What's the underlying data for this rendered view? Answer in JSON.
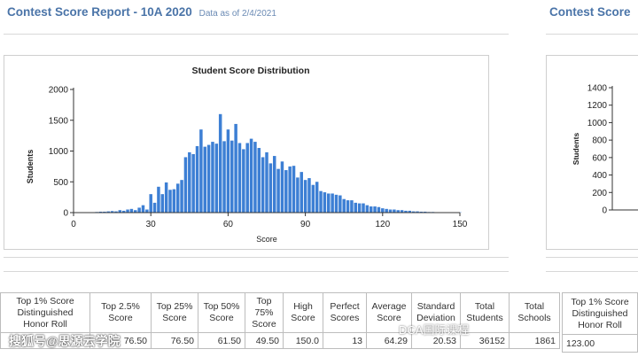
{
  "header": {
    "title": "Contest Score Report -  10A 2020",
    "as_of": "Data as of 2/4/2021",
    "title_right": "Contest Score"
  },
  "chart_data": [
    {
      "type": "bar",
      "title": "Student Score Distribution",
      "xlabel": "Score",
      "ylabel": "Students",
      "xlim": [
        0,
        150
      ],
      "ylim": [
        0,
        2000
      ],
      "xticks": [
        0,
        30,
        60,
        90,
        120,
        150
      ],
      "yticks": [
        0,
        500,
        1000,
        1500,
        2000
      ],
      "bar_width": 1.5,
      "color": "#3d7fd4",
      "grid": false,
      "x": [
        6,
        7.5,
        9,
        10.5,
        12,
        13.5,
        15,
        16.5,
        18,
        19.5,
        21,
        22.5,
        24,
        25.5,
        27,
        28.5,
        30,
        31.5,
        33,
        34.5,
        36,
        37.5,
        39,
        40.5,
        42,
        43.5,
        45,
        46.5,
        48,
        49.5,
        51,
        52.5,
        54,
        55.5,
        57,
        58.5,
        60,
        61.5,
        63,
        64.5,
        66,
        67.5,
        69,
        70.5,
        72,
        73.5,
        75,
        76.5,
        78,
        79.5,
        81,
        82.5,
        84,
        85.5,
        87,
        88.5,
        90,
        91.5,
        93,
        94.5,
        96,
        97.5,
        99,
        100.5,
        102,
        103.5,
        105,
        106.5,
        108,
        109.5,
        111,
        112.5,
        114,
        115.5,
        117,
        118.5,
        120,
        121.5,
        123,
        124.5,
        126,
        127.5,
        129,
        130.5,
        132,
        133.5,
        135,
        136.5,
        138,
        139.5,
        141,
        142.5,
        144,
        145.5,
        147,
        148.5,
        150
      ],
      "values": [
        5,
        5,
        10,
        15,
        15,
        20,
        25,
        20,
        40,
        30,
        50,
        60,
        40,
        80,
        120,
        50,
        300,
        160,
        420,
        300,
        490,
        370,
        380,
        470,
        530,
        900,
        980,
        950,
        1080,
        1350,
        1070,
        1100,
        1150,
        1120,
        1600,
        1160,
        1350,
        1170,
        1440,
        1130,
        1030,
        1130,
        1200,
        1150,
        1050,
        900,
        980,
        800,
        920,
        710,
        830,
        690,
        750,
        760,
        570,
        660,
        530,
        560,
        450,
        500,
        350,
        330,
        310,
        310,
        290,
        280,
        220,
        200,
        200,
        160,
        150,
        150,
        120,
        100,
        100,
        90,
        70,
        60,
        50,
        50,
        40,
        40,
        30,
        30,
        20,
        20,
        15,
        15,
        10,
        10,
        5,
        5,
        5,
        5,
        5,
        5,
        5
      ]
    },
    {
      "type": "bar",
      "title": "",
      "ylim": [
        0,
        1400
      ],
      "yticks": [
        0,
        200,
        400,
        600,
        800,
        1000,
        1200,
        1400
      ],
      "ylabel": "Students"
    }
  ],
  "table": {
    "headers": [
      [
        "Top 1% Score",
        "Distinguished",
        "Honor Roll"
      ],
      [
        "Top 2.5%",
        "Score"
      ],
      [
        "Top 25%",
        "Score"
      ],
      [
        "Top 50%",
        "Score"
      ],
      [
        "Top",
        "75%",
        "Score"
      ],
      [
        "High",
        "Score"
      ],
      [
        "Perfect",
        "Scores"
      ],
      [
        "Average",
        "Score"
      ],
      [
        "Standard",
        "Deviation"
      ],
      [
        "Total",
        "Students"
      ],
      [
        "Total",
        "Schools"
      ]
    ],
    "values": [
      "",
      "76.50",
      "76.50",
      "61.50",
      "49.50",
      "150.0",
      "13",
      "64.29",
      "20.53",
      "36152",
      "1861"
    ]
  },
  "table_right": {
    "header": [
      "Top 1% Score",
      "Distinguished",
      "Honor Roll"
    ],
    "value": "123.00"
  },
  "watermarks": {
    "left": "搜狐号@思源云学院",
    "right": "DCA国际课程"
  }
}
